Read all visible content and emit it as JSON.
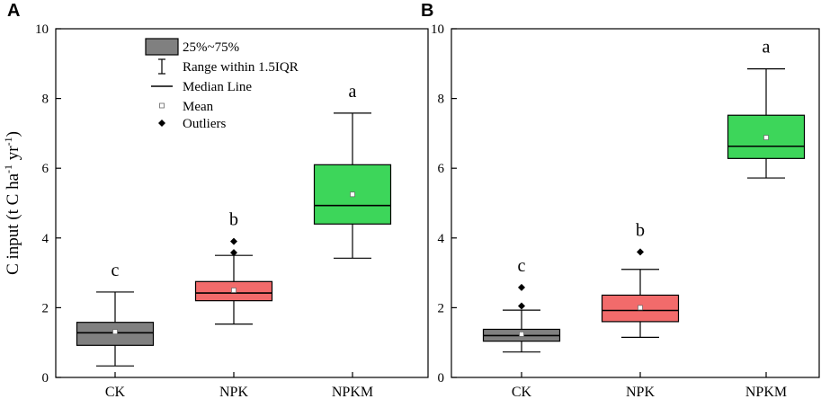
{
  "chart_data": [
    {
      "panel": "A",
      "type": "box",
      "ylabel": {
        "prefix": "C input (t C ha",
        "sup1": "-1",
        "mid": " yr",
        "sup2": "-1",
        "suffix": ")"
      },
      "ylim": [
        0,
        10
      ],
      "yticks": [
        0,
        2,
        4,
        6,
        8,
        10
      ],
      "categories": [
        "CK",
        "NPK",
        "NPKM"
      ],
      "colors": [
        "#808080",
        "#f26b6b",
        "#3dd65a"
      ],
      "boxes": [
        {
          "whisker_low": 0.33,
          "q1": 0.92,
          "median": 1.28,
          "q3": 1.58,
          "whisker_high": 2.45,
          "mean": 1.31,
          "outliers": [],
          "letter": "c"
        },
        {
          "whisker_low": 1.53,
          "q1": 2.2,
          "median": 2.42,
          "q3": 2.75,
          "whisker_high": 3.5,
          "mean": 2.5,
          "outliers": [
            3.58,
            3.9
          ],
          "letter": "b"
        },
        {
          "whisker_low": 3.42,
          "q1": 4.4,
          "median": 4.93,
          "q3": 6.1,
          "whisker_high": 7.58,
          "mean": 5.25,
          "outliers": [],
          "letter": "a"
        }
      ],
      "legend": {
        "box": "25%~75%",
        "range": "Range within 1.5IQR",
        "median": "Median Line",
        "mean": "Mean",
        "outliers": "Outliers"
      }
    },
    {
      "panel": "B",
      "type": "box",
      "ylim": [
        0,
        10
      ],
      "yticks": [
        0,
        2,
        4,
        6,
        8,
        10
      ],
      "categories": [
        "CK",
        "NPK",
        "NPKM"
      ],
      "colors": [
        "#808080",
        "#f26b6b",
        "#3dd65a"
      ],
      "boxes": [
        {
          "whisker_low": 0.73,
          "q1": 1.04,
          "median": 1.2,
          "q3": 1.38,
          "whisker_high": 1.93,
          "mean": 1.24,
          "outliers": [
            2.05,
            2.58
          ],
          "letter": "c"
        },
        {
          "whisker_low": 1.15,
          "q1": 1.6,
          "median": 1.92,
          "q3": 2.36,
          "whisker_high": 3.1,
          "mean": 2.0,
          "outliers": [
            3.6
          ],
          "letter": "b"
        },
        {
          "whisker_low": 5.72,
          "q1": 6.28,
          "median": 6.63,
          "q3": 7.52,
          "whisker_high": 8.85,
          "mean": 6.88,
          "outliers": [],
          "letter": "a"
        }
      ]
    }
  ]
}
